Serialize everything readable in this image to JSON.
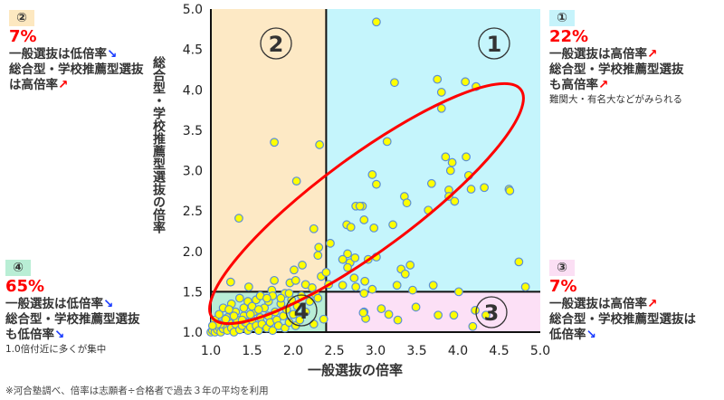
{
  "annotations": {
    "q2": {
      "badge": "②",
      "badge_color": "#fde8c0",
      "percent": "7%",
      "lines": [
        "一般選抜は低倍率",
        "総合型・学校推薦型選抜",
        "は高倍率"
      ],
      "arrows": [
        "↘",
        "",
        "↗"
      ]
    },
    "q1": {
      "badge": "①",
      "badge_color": "#c6f3fb",
      "percent": "22%",
      "lines": [
        "一般選抜は高倍率",
        "総合型・学校推薦型選抜",
        "も高倍率"
      ],
      "arrows": [
        "↗",
        "",
        "↗"
      ],
      "note": "難関大・有名大などがみられる"
    },
    "q4": {
      "badge": "④",
      "badge_color": "#b9eed5",
      "percent": "65%",
      "lines": [
        "一般選抜は低倍率",
        "総合型・学校推薦型選抜",
        "も低倍率"
      ],
      "arrows": [
        "↘",
        "",
        "↘"
      ],
      "note": "1.0倍付近に多くが集中"
    },
    "q3": {
      "badge": "③",
      "badge_color": "#fbdff4",
      "percent": "7%",
      "lines": [
        "一般選抜は高倍率",
        "総合型・学校推薦型選抜は",
        "低倍率"
      ],
      "arrows": [
        "↗",
        "",
        "↘"
      ]
    }
  },
  "footnote": "※河合塾調べ、倍率は志願者÷合格者で過去３年の平均を利用",
  "chart_data": {
    "type": "scatter",
    "xlabel": "一般選抜の倍率",
    "ylabel": "総合型・学校推薦型選抜の倍率",
    "xlim": [
      1.0,
      5.0
    ],
    "ylim": [
      1.0,
      5.0
    ],
    "xticks": [
      "1.0",
      "1.5",
      "2.0",
      "2.5",
      "3.0",
      "3.5",
      "4.0",
      "4.5",
      "5.0"
    ],
    "yticks": [
      "1.0",
      "1.5",
      "2.0",
      "2.5",
      "3.0",
      "3.5",
      "4.0",
      "4.5",
      "5.0"
    ],
    "quadrant_split": {
      "x": 2.4,
      "y": 1.5
    },
    "quadrants": [
      {
        "label": "①",
        "color": "#c5f5fc"
      },
      {
        "label": "②",
        "color": "#fde9c5"
      },
      {
        "label": "③",
        "color": "#fce0f6"
      },
      {
        "label": "④",
        "color": "#b9eed6"
      }
    ],
    "point_color": "#ffff00",
    "point_edge": "#5b8fd6",
    "ellipse_color": "#ff0000",
    "points": [
      [
        3.01,
        4.84
      ],
      [
        3.23,
        4.09
      ],
      [
        3.75,
        4.13
      ],
      [
        4.09,
        4.1
      ],
      [
        4.22,
        4.04
      ],
      [
        3.8,
        3.97
      ],
      [
        3.8,
        3.77
      ],
      [
        3.14,
        3.36
      ],
      [
        3.85,
        3.17
      ],
      [
        4.1,
        3.17
      ],
      [
        3.93,
        3.1
      ],
      [
        3.91,
        3.0
      ],
      [
        4.13,
        2.94
      ],
      [
        2.96,
        2.95
      ],
      [
        3.01,
        2.83
      ],
      [
        3.68,
        2.84
      ],
      [
        4.32,
        2.79
      ],
      [
        4.62,
        2.77
      ],
      [
        4.16,
        2.77
      ],
      [
        3.89,
        2.76
      ],
      [
        3.35,
        2.68
      ],
      [
        3.38,
        2.6
      ],
      [
        3.89,
        2.68
      ],
      [
        3.96,
        2.62
      ],
      [
        4.63,
        2.75
      ],
      [
        3.64,
        2.51
      ],
      [
        2.84,
        2.56
      ],
      [
        2.86,
        2.39
      ],
      [
        2.98,
        2.29
      ],
      [
        3.21,
        2.33
      ],
      [
        2.91,
        1.9
      ],
      [
        3.01,
        1.93
      ],
      [
        3.31,
        1.78
      ],
      [
        3.42,
        1.83
      ],
      [
        3.36,
        1.72
      ],
      [
        2.87,
        1.63
      ],
      [
        4.74,
        1.87
      ],
      [
        4.82,
        1.56
      ],
      [
        3.26,
        1.58
      ],
      [
        3.7,
        1.58
      ],
      [
        2.96,
        1.53
      ],
      [
        3.45,
        1.52
      ],
      [
        4.01,
        1.5
      ],
      [
        3.07,
        1.29
      ],
      [
        3.16,
        1.22
      ],
      [
        3.27,
        1.15
      ],
      [
        3.49,
        1.31
      ],
      [
        3.76,
        1.21
      ],
      [
        3.95,
        1.21
      ],
      [
        4.21,
        1.27
      ],
      [
        4.34,
        1.21
      ],
      [
        4.18,
        1.07
      ],
      [
        2.86,
        1.25
      ],
      [
        2.88,
        1.17
      ],
      [
        2.86,
        1.48
      ],
      [
        2.85,
        1.24
      ],
      [
        2.04,
        2.87
      ],
      [
        1.34,
        2.41
      ],
      [
        2.25,
        2.28
      ],
      [
        2.31,
        2.05
      ],
      [
        2.3,
        1.95
      ],
      [
        2.45,
        2.1
      ],
      [
        2.11,
        1.83
      ],
      [
        2.01,
        1.77
      ],
      [
        2.34,
        1.69
      ],
      [
        2.4,
        1.74
      ],
      [
        1.24,
        1.62
      ],
      [
        1.77,
        1.64
      ],
      [
        1.96,
        1.61
      ],
      [
        2.03,
        1.64
      ],
      [
        2.15,
        1.59
      ],
      [
        2.76,
        2.56
      ],
      [
        2.81,
        2.56
      ],
      [
        2.65,
        2.33
      ],
      [
        2.7,
        2.3
      ],
      [
        2.66,
        1.97
      ],
      [
        2.6,
        1.9
      ],
      [
        2.69,
        1.86
      ],
      [
        2.75,
        1.92
      ],
      [
        2.66,
        1.8
      ],
      [
        2.74,
        1.67
      ],
      [
        2.6,
        1.58
      ],
      [
        2.43,
        1.59
      ],
      [
        2.76,
        1.56
      ],
      [
        2.37,
        1.16
      ],
      [
        2.23,
        1.55
      ],
      [
        2.27,
        1.47
      ],
      [
        1.46,
        1.56
      ],
      [
        1.74,
        1.52
      ],
      [
        1.9,
        1.48
      ],
      [
        1.77,
        3.35
      ],
      [
        2.32,
        3.32
      ],
      [
        1.0,
        1.0
      ],
      [
        1.02,
        1.02
      ],
      [
        1.05,
        1.0
      ],
      [
        1.08,
        1.03
      ],
      [
        1.1,
        1.06
      ],
      [
        1.12,
        1.0
      ],
      [
        1.15,
        1.04
      ],
      [
        1.18,
        1.08
      ],
      [
        1.2,
        1.02
      ],
      [
        1.22,
        1.12
      ],
      [
        1.25,
        1.05
      ],
      [
        1.28,
        1.0
      ],
      [
        1.3,
        1.1
      ],
      [
        1.32,
        1.15
      ],
      [
        1.35,
        1.03
      ],
      [
        1.38,
        1.08
      ],
      [
        1.4,
        1.2
      ],
      [
        1.42,
        1.12
      ],
      [
        1.45,
        1.02
      ],
      [
        1.48,
        1.06
      ],
      [
        1.5,
        1.15
      ],
      [
        1.52,
        1.25
      ],
      [
        1.55,
        1.08
      ],
      [
        1.58,
        1.02
      ],
      [
        1.6,
        1.18
      ],
      [
        1.62,
        1.1
      ],
      [
        1.65,
        1.3
      ],
      [
        1.68,
        1.05
      ],
      [
        1.7,
        1.2
      ],
      [
        1.72,
        1.12
      ],
      [
        1.75,
        1.02
      ],
      [
        1.78,
        1.25
      ],
      [
        1.8,
        1.15
      ],
      [
        1.82,
        1.08
      ],
      [
        1.85,
        1.35
      ],
      [
        1.88,
        1.2
      ],
      [
        1.9,
        1.05
      ],
      [
        1.92,
        1.28
      ],
      [
        1.95,
        1.12
      ],
      [
        1.98,
        1.4
      ],
      [
        2.0,
        1.22
      ],
      [
        2.03,
        1.08
      ],
      [
        2.05,
        1.32
      ],
      [
        2.08,
        1.15
      ],
      [
        2.1,
        1.45
      ],
      [
        2.15,
        1.25
      ],
      [
        2.2,
        1.38
      ],
      [
        2.25,
        1.1
      ],
      [
        2.3,
        1.42
      ],
      [
        1.05,
        1.15
      ],
      [
        1.1,
        1.22
      ],
      [
        1.15,
        1.3
      ],
      [
        1.2,
        1.18
      ],
      [
        1.25,
        1.35
      ],
      [
        1.3,
        1.25
      ],
      [
        1.35,
        1.42
      ],
      [
        1.4,
        1.3
      ],
      [
        1.45,
        1.38
      ],
      [
        1.5,
        1.32
      ],
      [
        1.55,
        1.4
      ],
      [
        1.6,
        1.45
      ],
      [
        1.7,
        1.38
      ],
      [
        1.75,
        1.45
      ],
      [
        1.12,
        1.1
      ],
      [
        1.18,
        1.16
      ],
      [
        1.28,
        1.2
      ],
      [
        1.38,
        1.15
      ],
      [
        1.48,
        1.22
      ],
      [
        1.58,
        1.28
      ],
      [
        1.68,
        1.42
      ],
      [
        1.08,
        1.1
      ],
      [
        1.22,
        1.28
      ],
      [
        1.02,
        1.08
      ],
      [
        1.95,
        1.48
      ],
      [
        1.85,
        1.42
      ]
    ]
  }
}
